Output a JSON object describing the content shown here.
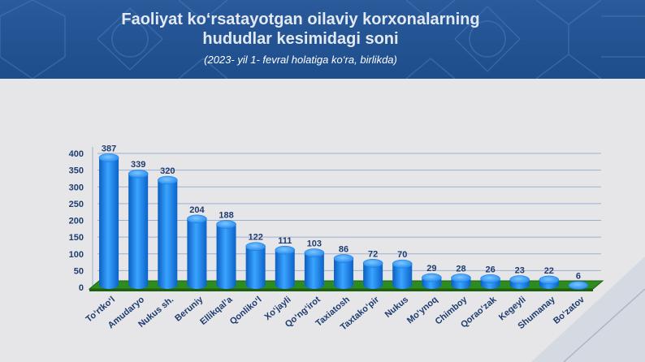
{
  "header": {
    "title_line1": "Faoliyat ko‘rsatayotgan oilaviy korxonalarning",
    "title_line2": "hududlar kesimidagi soni",
    "subtitle": "(2023- yil 1- fevral holatiga ko‘ra, birlikda)"
  },
  "colors": {
    "header_bg": "#1e4d8c",
    "bar": "#1e90ff",
    "floor": "#2e8b1e",
    "background": "#e6e6e8"
  },
  "chart_data": {
    "type": "bar",
    "title": "Faoliyat ko‘rsatayotgan oilaviy korxonalarning hududlar kesimidagi soni",
    "subtitle": "(2023- yil 1- fevral holatiga ko‘ra, birlikda)",
    "categories": [
      "To‘rtko‘l",
      "Amudaryo",
      "Nukus sh.",
      "Beruniy",
      "Ellikqal’a",
      "Qonliko‘l",
      "Xo‘jayli",
      "Qo‘ng‘irot",
      "Taxiatosh",
      "Taxtako‘pir",
      "Nukus",
      "Mo‘ynoq",
      "Chimboy",
      "Qorao‘zak",
      "Kegeyli",
      "Shumanay",
      "Bo‘zatov"
    ],
    "values": [
      387,
      339,
      320,
      204,
      188,
      122,
      111,
      103,
      86,
      72,
      70,
      29,
      28,
      26,
      23,
      22,
      6
    ],
    "yticks": [
      "0",
      "50",
      "100",
      "150",
      "200",
      "250",
      "300",
      "350",
      "400"
    ],
    "ylim": [
      0,
      400
    ],
    "grid": true,
    "legend": "none",
    "xlabel": "",
    "ylabel": ""
  }
}
